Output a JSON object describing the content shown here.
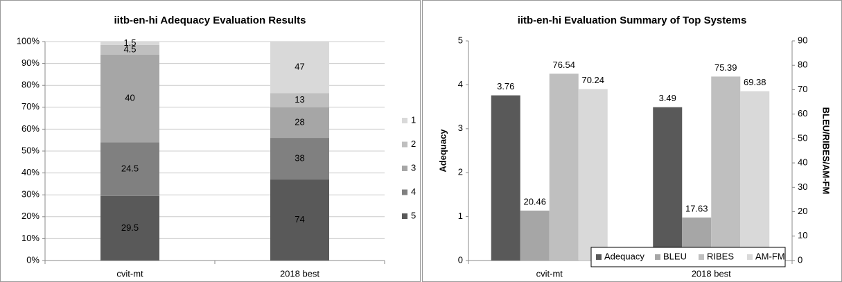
{
  "chart_data": [
    {
      "type": "bar",
      "stacking": "percent",
      "title": "iitb-en-hi Adequacy Evaluation Results",
      "categories": [
        "cvit-mt",
        "2018 best"
      ],
      "series": [
        {
          "name": "5",
          "color": "#595959",
          "values": [
            29.5,
            74
          ]
        },
        {
          "name": "4",
          "color": "#808080",
          "values": [
            24.5,
            38
          ]
        },
        {
          "name": "3",
          "color": "#a6a6a6",
          "values": [
            40,
            28
          ]
        },
        {
          "name": "2",
          "color": "#bfbfbf",
          "values": [
            4.5,
            13
          ]
        },
        {
          "name": "1",
          "color": "#d9d9d9",
          "values": [
            1.5,
            47
          ]
        }
      ],
      "ylim": [
        0,
        100
      ],
      "yticks": [
        {
          "value": 0,
          "label": "0%"
        },
        {
          "value": 10,
          "label": "10%"
        },
        {
          "value": 20,
          "label": "20%"
        },
        {
          "value": 30,
          "label": "30%"
        },
        {
          "value": 40,
          "label": "40%"
        },
        {
          "value": 50,
          "label": "50%"
        },
        {
          "value": 60,
          "label": "60%"
        },
        {
          "value": 70,
          "label": "70%"
        },
        {
          "value": 80,
          "label": "80%"
        },
        {
          "value": 90,
          "label": "90%"
        },
        {
          "value": 100,
          "label": "100%"
        }
      ],
      "grid": true,
      "legend": "right"
    },
    {
      "type": "bar",
      "title": "iitb-en-hi Evaluation Summary of Top Systems",
      "categories": [
        "cvit-mt",
        "2018 best"
      ],
      "y_label": "Adequacy",
      "y2_label": "BLEU/RIBES/AM-FM",
      "series": [
        {
          "name": "Adequacy",
          "color": "#595959",
          "values": [
            3.76,
            3.49
          ]
        },
        {
          "name": "BLEU",
          "color": "#a6a6a6",
          "values": [
            20.46,
            17.63
          ],
          "axis": "y2"
        },
        {
          "name": "RIBES",
          "color": "#bfbfbf",
          "values": [
            76.54,
            75.39
          ],
          "axis": "y2"
        },
        {
          "name": "AM-FM",
          "color": "#d9d9d9",
          "values": [
            70.24,
            69.38
          ],
          "axis": "y2"
        }
      ],
      "ylim": [
        0,
        5
      ],
      "yticks": [
        0,
        1,
        2,
        3,
        4,
        5
      ],
      "y2lim": [
        0,
        90
      ],
      "y2ticks": [
        0,
        10,
        20,
        30,
        40,
        50,
        60,
        70,
        80,
        90
      ],
      "grid": false,
      "legend": "lower right"
    }
  ]
}
